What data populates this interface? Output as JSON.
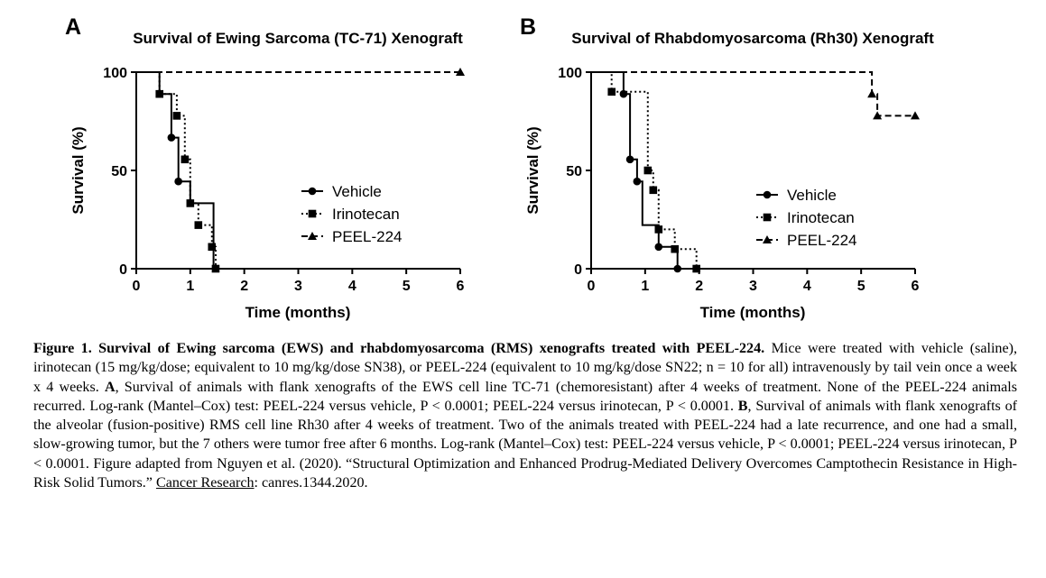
{
  "chart_data": [
    {
      "type": "line",
      "subtype": "kaplan-meier",
      "panel": "A",
      "title": "Survival of Ewing Sarcoma (TC-71) Xenograft",
      "xlabel": "Time (months)",
      "ylabel": "Survival (%)",
      "xlim": [
        0,
        6
      ],
      "ylim": [
        0,
        100
      ],
      "xticks": [
        "0",
        "1",
        "2",
        "3",
        "4",
        "5",
        "6"
      ],
      "yticks": [
        "0",
        "50",
        "100"
      ],
      "grid": false,
      "legend_placement": "center-right",
      "series": [
        {
          "name": "Vehicle",
          "marker": "circle",
          "dash": "solid",
          "steps": [
            [
              0,
              100
            ],
            [
              0.43,
              100
            ],
            [
              0.43,
              88.9
            ],
            [
              0.65,
              88.9
            ],
            [
              0.65,
              66.7
            ],
            [
              0.78,
              66.7
            ],
            [
              0.78,
              44.4
            ],
            [
              1,
              44.4
            ],
            [
              1,
              33.3
            ],
            [
              1.43,
              33.3
            ],
            [
              1.43,
              0
            ]
          ],
          "markers": [
            [
              0.65,
              66.7
            ],
            [
              0.78,
              44.4
            ]
          ]
        },
        {
          "name": "Irinotecan",
          "marker": "square",
          "dash": "dotted",
          "steps": [
            [
              0,
              100
            ],
            [
              0.43,
              100
            ],
            [
              0.43,
              88.9
            ],
            [
              0.75,
              88.9
            ],
            [
              0.75,
              77.8
            ],
            [
              0.9,
              77.8
            ],
            [
              0.9,
              55.6
            ],
            [
              1,
              55.6
            ],
            [
              1,
              33.3
            ],
            [
              1.15,
              33.3
            ],
            [
              1.15,
              22.2
            ],
            [
              1.4,
              22.2
            ],
            [
              1.4,
              11.1
            ],
            [
              1.47,
              11.1
            ],
            [
              1.47,
              0
            ]
          ],
          "markers": [
            [
              0.43,
              88.9
            ],
            [
              0.75,
              77.8
            ],
            [
              0.9,
              55.6
            ],
            [
              1,
              33.3
            ],
            [
              1.15,
              22.2
            ],
            [
              1.4,
              11.1
            ],
            [
              1.47,
              0
            ]
          ]
        },
        {
          "name": "PEEL-224",
          "marker": "triangle",
          "dash": "dashed",
          "steps": [
            [
              0,
              100
            ],
            [
              6,
              100
            ]
          ],
          "markers": [
            [
              6,
              100
            ]
          ]
        }
      ]
    },
    {
      "type": "line",
      "subtype": "kaplan-meier",
      "panel": "B",
      "title": "Survival of Rhabdomyosarcoma (Rh30) Xenograft",
      "xlabel": "Time (months)",
      "ylabel": "Survival (%)",
      "xlim": [
        0,
        6
      ],
      "ylim": [
        0,
        100
      ],
      "xticks": [
        "0",
        "1",
        "2",
        "3",
        "4",
        "5",
        "6"
      ],
      "yticks": [
        "0",
        "50",
        "100"
      ],
      "grid": false,
      "legend_placement": "center-right",
      "series": [
        {
          "name": "Vehicle",
          "marker": "circle",
          "dash": "solid",
          "steps": [
            [
              0,
              100
            ],
            [
              0.6,
              100
            ],
            [
              0.6,
              88.9
            ],
            [
              0.72,
              88.9
            ],
            [
              0.72,
              55.6
            ],
            [
              0.85,
              55.6
            ],
            [
              0.85,
              44.4
            ],
            [
              0.95,
              44.4
            ],
            [
              0.95,
              22.2
            ],
            [
              1.25,
              22.2
            ],
            [
              1.25,
              11.1
            ],
            [
              1.6,
              11.1
            ],
            [
              1.6,
              0
            ]
          ],
          "markers": [
            [
              0.6,
              88.9
            ],
            [
              0.72,
              55.6
            ],
            [
              0.85,
              44.4
            ],
            [
              1.25,
              11.1
            ],
            [
              1.6,
              0
            ]
          ]
        },
        {
          "name": "Irinotecan",
          "marker": "square",
          "dash": "dotted",
          "steps": [
            [
              0,
              100
            ],
            [
              0.38,
              100
            ],
            [
              0.38,
              90
            ],
            [
              1.05,
              90
            ],
            [
              1.05,
              50
            ],
            [
              1.15,
              50
            ],
            [
              1.15,
              40
            ],
            [
              1.25,
              40
            ],
            [
              1.25,
              20
            ],
            [
              1.55,
              20
            ],
            [
              1.55,
              10
            ],
            [
              1.95,
              10
            ],
            [
              1.95,
              0
            ]
          ],
          "markers": [
            [
              0.38,
              90
            ],
            [
              1.05,
              50
            ],
            [
              1.15,
              40
            ],
            [
              1.25,
              20
            ],
            [
              1.55,
              10
            ],
            [
              1.95,
              0
            ]
          ]
        },
        {
          "name": "PEEL-224",
          "marker": "triangle",
          "dash": "dashed",
          "steps": [
            [
              0,
              100
            ],
            [
              5.2,
              100
            ],
            [
              5.2,
              88.9
            ],
            [
              5.3,
              88.9
            ],
            [
              5.3,
              77.8
            ],
            [
              6,
              77.8
            ]
          ],
          "markers": [
            [
              5.2,
              88.9
            ],
            [
              5.3,
              77.8
            ],
            [
              6,
              77.8
            ]
          ]
        }
      ]
    }
  ],
  "caption": {
    "lead": "Figure 1. Survival of Ewing sarcoma (EWS) and rhabdomyosarcoma (RMS) xenografts treated with PEEL-224.",
    "p1": " Mice were treated with vehicle (saline), irinotecan (15 mg/kg/dose; equivalent to 10 mg/kg/dose SN38), or PEEL-224 (equivalent to 10 mg/kg/dose SN22; n = 10 for all) intravenously by tail vein once a week x 4 weeks. ",
    "a_label": "A",
    "p2": ", Survival of animals with flank xenografts of the EWS cell line TC-71 (chemoresistant) after 4 weeks of treatment. None of the PEEL-224 animals recurred. Log-rank (Mantel–Cox) test: PEEL-224 versus vehicle, P < 0.0001; PEEL-224 versus irinotecan, P < 0.0001. ",
    "b_label": "B",
    "p3": ", Survival of animals with flank xenografts of the alveolar (fusion-positive) RMS cell line Rh30 after 4 weeks of treatment. Two of the animals treated with PEEL-224 had a late recurrence, and one had a small, slow-growing tumor, but the 7 others were tumor free after 6 months. Log-rank (Mantel–Cox) test: PEEL-224 versus vehicle, P < 0.0001; PEEL-224 versus irinotecan, P < 0.0001. Figure adapted from Nguyen et al. (2020). “Structural Optimization and Enhanced Prodrug-Mediated Delivery Overcomes Camptothecin Resistance in High-Risk Solid Tumors.” ",
    "journal": "Cancer Research",
    "p4": ": canres.1344.2020."
  }
}
